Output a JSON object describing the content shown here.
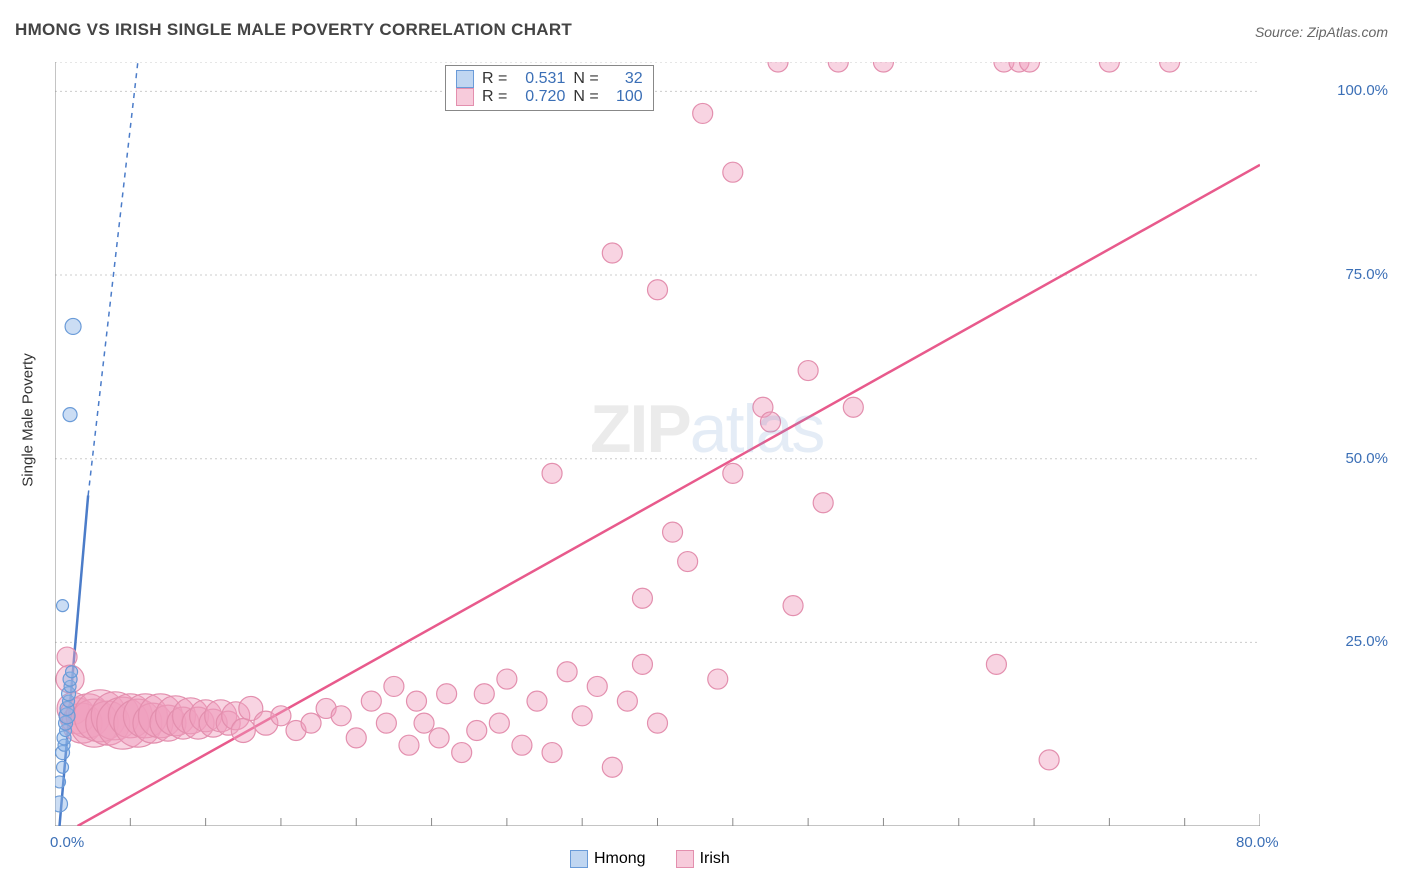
{
  "title": "HMONG VS IRISH SINGLE MALE POVERTY CORRELATION CHART",
  "source": "Source: ZipAtlas.com",
  "y_axis_label": "Single Male Poverty",
  "watermark": {
    "text1": "ZIP",
    "text2": "atlas",
    "color1": "rgba(120,120,120,0.15)",
    "color2": "rgba(120,160,210,0.20)"
  },
  "chart": {
    "type": "scatter",
    "plot_bg": "#ffffff",
    "grid_color": "#cccccc",
    "axis_color": "#888888",
    "tick_color": "#888888",
    "label_color": "#3b6fb6",
    "xlim": [
      0,
      80
    ],
    "ylim": [
      0,
      104
    ],
    "x_ticks_major": [
      0,
      80
    ],
    "x_ticks_minor": [
      5,
      10,
      15,
      20,
      25,
      30,
      35,
      40,
      45,
      50,
      55,
      60,
      65,
      70,
      75
    ],
    "y_ticks_major": [
      0,
      25,
      50,
      75,
      100
    ],
    "x_tick_labels": {
      "0": "0.0%",
      "80": "80.0%"
    },
    "y_tick_labels": {
      "0": "0.0%",
      "25": "25.0%",
      "50": "50.0%",
      "75": "75.0%",
      "100": "100.0%"
    },
    "y_label_fontsize": 15,
    "tick_fontsize": 15,
    "series": [
      {
        "name": "Hmong",
        "marker_fill": "rgba(140,180,230,0.45)",
        "marker_stroke": "#6a9bd8",
        "line_color": "#4b7cc9",
        "line_dash_extend": true,
        "R": "0.531",
        "N": "32",
        "trend_solid": {
          "x1": 0.3,
          "y1": 0,
          "x2": 2.2,
          "y2": 45
        },
        "trend_dash": {
          "x1": 2.2,
          "y1": 45,
          "x2": 5.5,
          "y2": 104
        },
        "points": [
          {
            "x": 0.3,
            "y": 3,
            "r": 8
          },
          {
            "x": 0.3,
            "y": 6,
            "r": 6
          },
          {
            "x": 0.5,
            "y": 8,
            "r": 6
          },
          {
            "x": 0.5,
            "y": 10,
            "r": 7
          },
          {
            "x": 0.6,
            "y": 11,
            "r": 6
          },
          {
            "x": 0.6,
            "y": 12,
            "r": 7
          },
          {
            "x": 0.7,
            "y": 13,
            "r": 6
          },
          {
            "x": 0.7,
            "y": 14,
            "r": 7
          },
          {
            "x": 0.8,
            "y": 15,
            "r": 8
          },
          {
            "x": 0.8,
            "y": 16,
            "r": 7
          },
          {
            "x": 0.9,
            "y": 17,
            "r": 6
          },
          {
            "x": 0.9,
            "y": 18,
            "r": 7
          },
          {
            "x": 1.0,
            "y": 19,
            "r": 6
          },
          {
            "x": 1.0,
            "y": 20,
            "r": 7
          },
          {
            "x": 1.1,
            "y": 21,
            "r": 6
          },
          {
            "x": 0.5,
            "y": 30,
            "r": 6
          },
          {
            "x": 1.0,
            "y": 56,
            "r": 7
          },
          {
            "x": 1.2,
            "y": 68,
            "r": 8
          }
        ]
      },
      {
        "name": "Irish",
        "marker_fill": "rgba(240,160,190,0.45)",
        "marker_stroke": "#e38fae",
        "line_color": "#e85a8c",
        "line_dash_extend": false,
        "R": "0.720",
        "N": "100",
        "trend_solid": {
          "x1": 1.5,
          "y1": 0,
          "x2": 80,
          "y2": 90
        },
        "points": [
          {
            "x": 0.8,
            "y": 23,
            "r": 10
          },
          {
            "x": 1.0,
            "y": 20,
            "r": 14
          },
          {
            "x": 1.2,
            "y": 16,
            "r": 16
          },
          {
            "x": 1.5,
            "y": 15,
            "r": 18
          },
          {
            "x": 1.8,
            "y": 14,
            "r": 20
          },
          {
            "x": 2.2,
            "y": 15,
            "r": 22
          },
          {
            "x": 2.6,
            "y": 14,
            "r": 24
          },
          {
            "x": 3.0,
            "y": 15,
            "r": 26
          },
          {
            "x": 3.5,
            "y": 14,
            "r": 22
          },
          {
            "x": 4.0,
            "y": 15,
            "r": 24
          },
          {
            "x": 4.5,
            "y": 14,
            "r": 26
          },
          {
            "x": 5.0,
            "y": 15,
            "r": 22
          },
          {
            "x": 5.5,
            "y": 14,
            "r": 24
          },
          {
            "x": 6.0,
            "y": 15,
            "r": 22
          },
          {
            "x": 6.5,
            "y": 14,
            "r": 20
          },
          {
            "x": 7.0,
            "y": 15,
            "r": 22
          },
          {
            "x": 7.5,
            "y": 14,
            "r": 18
          },
          {
            "x": 8.0,
            "y": 15,
            "r": 20
          },
          {
            "x": 8.5,
            "y": 14,
            "r": 16
          },
          {
            "x": 9.0,
            "y": 15,
            "r": 18
          },
          {
            "x": 9.5,
            "y": 14,
            "r": 16
          },
          {
            "x": 10.0,
            "y": 15,
            "r": 16
          },
          {
            "x": 10.5,
            "y": 14,
            "r": 14
          },
          {
            "x": 11.0,
            "y": 15,
            "r": 16
          },
          {
            "x": 11.5,
            "y": 14,
            "r": 12
          },
          {
            "x": 12.0,
            "y": 15,
            "r": 14
          },
          {
            "x": 12.5,
            "y": 13,
            "r": 12
          },
          {
            "x": 13.0,
            "y": 16,
            "r": 12
          },
          {
            "x": 14.0,
            "y": 14,
            "r": 12
          },
          {
            "x": 15.0,
            "y": 15,
            "r": 10
          },
          {
            "x": 16.0,
            "y": 13,
            "r": 10
          },
          {
            "x": 17.0,
            "y": 14,
            "r": 10
          },
          {
            "x": 18.0,
            "y": 16,
            "r": 10
          },
          {
            "x": 19.0,
            "y": 15,
            "r": 10
          },
          {
            "x": 20.0,
            "y": 12,
            "r": 10
          },
          {
            "x": 21.0,
            "y": 17,
            "r": 10
          },
          {
            "x": 22.0,
            "y": 14,
            "r": 10
          },
          {
            "x": 22.5,
            "y": 19,
            "r": 10
          },
          {
            "x": 23.5,
            "y": 11,
            "r": 10
          },
          {
            "x": 24.0,
            "y": 17,
            "r": 10
          },
          {
            "x": 24.5,
            "y": 14,
            "r": 10
          },
          {
            "x": 25.5,
            "y": 12,
            "r": 10
          },
          {
            "x": 26.0,
            "y": 18,
            "r": 10
          },
          {
            "x": 27.0,
            "y": 10,
            "r": 10
          },
          {
            "x": 28.0,
            "y": 13,
            "r": 10
          },
          {
            "x": 28.5,
            "y": 18,
            "r": 10
          },
          {
            "x": 29.5,
            "y": 14,
            "r": 10
          },
          {
            "x": 30.0,
            "y": 20,
            "r": 10
          },
          {
            "x": 31.0,
            "y": 11,
            "r": 10
          },
          {
            "x": 32.0,
            "y": 17,
            "r": 10
          },
          {
            "x": 33.0,
            "y": 10,
            "r": 10
          },
          {
            "x": 34.0,
            "y": 21,
            "r": 10
          },
          {
            "x": 35.0,
            "y": 15,
            "r": 10
          },
          {
            "x": 36.0,
            "y": 19,
            "r": 10
          },
          {
            "x": 37.0,
            "y": 8,
            "r": 10
          },
          {
            "x": 38.0,
            "y": 17,
            "r": 10
          },
          {
            "x": 39.0,
            "y": 22,
            "r": 10
          },
          {
            "x": 40.0,
            "y": 14,
            "r": 10
          },
          {
            "x": 33.0,
            "y": 48,
            "r": 10
          },
          {
            "x": 39.0,
            "y": 31,
            "r": 10
          },
          {
            "x": 41.0,
            "y": 40,
            "r": 10
          },
          {
            "x": 42.0,
            "y": 36,
            "r": 10
          },
          {
            "x": 37.0,
            "y": 78,
            "r": 10
          },
          {
            "x": 40.0,
            "y": 73,
            "r": 10
          },
          {
            "x": 44.0,
            "y": 20,
            "r": 10
          },
          {
            "x": 45.0,
            "y": 48,
            "r": 10
          },
          {
            "x": 47.0,
            "y": 57,
            "r": 10
          },
          {
            "x": 47.5,
            "y": 55,
            "r": 10
          },
          {
            "x": 45.0,
            "y": 89,
            "r": 10
          },
          {
            "x": 43.0,
            "y": 97,
            "r": 10
          },
          {
            "x": 48.0,
            "y": 104,
            "r": 10
          },
          {
            "x": 49.0,
            "y": 30,
            "r": 10
          },
          {
            "x": 50.0,
            "y": 62,
            "r": 10
          },
          {
            "x": 51.0,
            "y": 44,
            "r": 10
          },
          {
            "x": 52.0,
            "y": 104,
            "r": 10
          },
          {
            "x": 53.0,
            "y": 57,
            "r": 10
          },
          {
            "x": 55.0,
            "y": 104,
            "r": 10
          },
          {
            "x": 62.5,
            "y": 22,
            "r": 10
          },
          {
            "x": 63.0,
            "y": 104,
            "r": 10
          },
          {
            "x": 64.0,
            "y": 104,
            "r": 10
          },
          {
            "x": 64.7,
            "y": 104,
            "r": 10
          },
          {
            "x": 66.0,
            "y": 9,
            "r": 10
          },
          {
            "x": 70.0,
            "y": 104,
            "r": 10
          },
          {
            "x": 74.0,
            "y": 104,
            "r": 10
          }
        ]
      }
    ]
  },
  "legend": {
    "items": [
      {
        "label": "Hmong",
        "fill": "rgba(140,180,230,0.55)",
        "stroke": "#6a9bd8"
      },
      {
        "label": "Irish",
        "fill": "rgba(240,160,190,0.55)",
        "stroke": "#e38fae"
      }
    ]
  },
  "stat_box": {
    "R_label": "R =",
    "N_label": "N ="
  }
}
